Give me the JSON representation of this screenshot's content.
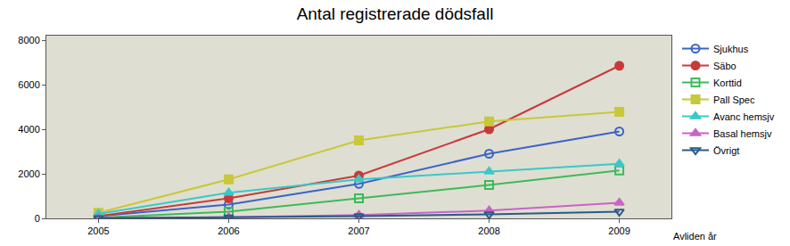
{
  "chart_data": {
    "type": "line",
    "title": "Antal registrerade dödsfall",
    "x_label": "Avliden år",
    "x": [
      2005,
      2006,
      2007,
      2008,
      2009
    ],
    "xlim": [
      2004.6,
      2009.4
    ],
    "xticks": [
      2005,
      2006,
      2007,
      2008,
      2009
    ],
    "ylim": [
      0,
      8200
    ],
    "yticks": [
      0,
      2000,
      4000,
      6000,
      8000
    ],
    "grid": false,
    "legend": "right",
    "series": [
      {
        "name": "Sjukhus",
        "color": "#3a64c8",
        "marker": "circle-open",
        "values": [
          100,
          620,
          1550,
          2900,
          3900
        ]
      },
      {
        "name": "Säbo",
        "color": "#c83a3a",
        "marker": "circle",
        "values": [
          100,
          900,
          1920,
          4000,
          6850
        ]
      },
      {
        "name": "Korttid",
        "color": "#3cba5a",
        "marker": "square-open",
        "values": [
          30,
          300,
          900,
          1500,
          2150
        ]
      },
      {
        "name": "Pall Spec",
        "color": "#c8c83a",
        "marker": "square",
        "values": [
          250,
          1750,
          3500,
          4350,
          4780
        ]
      },
      {
        "name": "Avanc hemsjv",
        "color": "#3ac8c8",
        "marker": "triangle-up",
        "values": [
          200,
          1150,
          1750,
          2100,
          2450
        ]
      },
      {
        "name": "Basal hemsjv",
        "color": "#c864c8",
        "marker": "triangle-up",
        "values": [
          10,
          50,
          150,
          350,
          700
        ]
      },
      {
        "name": "Övrigt",
        "color": "#2a5a8a",
        "marker": "triangle-down-open",
        "values": [
          10,
          40,
          100,
          180,
          300
        ]
      }
    ]
  }
}
